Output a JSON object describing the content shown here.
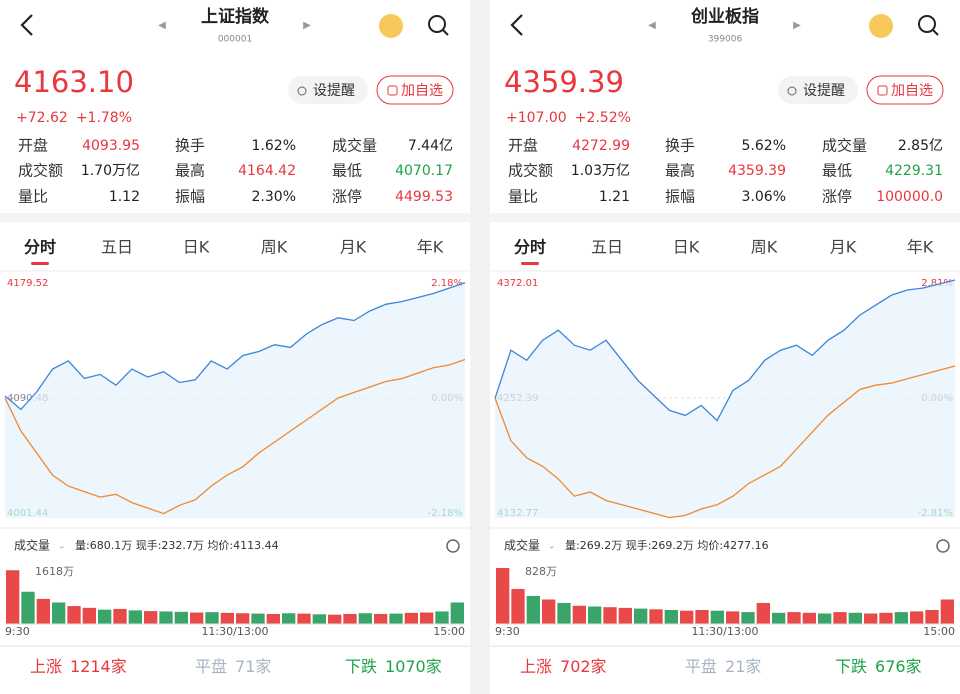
{
  "panels": [
    {
      "title": "上证指数",
      "code": "000001",
      "price": "4163.10",
      "change": "+72.62",
      "change_pct": "+1.78%",
      "buttons": [
        "设提醒",
        "加自选"
      ],
      "stats": [
        {
          "label": "开盘",
          "value": "4093.95",
          "color": "#e8373d"
        },
        {
          "label": "换手",
          "value": "1.62%",
          "color": "#222"
        },
        {
          "label": "成交量",
          "value": "7.44亿",
          "color": "#222"
        },
        {
          "label": "成交额",
          "value": "1.70万亿",
          "color": "#222"
        },
        {
          "label": "最高",
          "value": "4164.42",
          "color": "#e8373d"
        },
        {
          "label": "最低",
          "value": "4070.17",
          "color": "#1fa34a"
        },
        {
          "label": "量比",
          "value": "1.12",
          "color": "#222"
        },
        {
          "label": "振幅",
          "value": "2.30%",
          "color": "#222"
        },
        {
          "label": "涨停",
          "value": "4499.53",
          "color": "#e8373d"
        }
      ],
      "tabs": [
        "分时",
        "五日",
        "日K",
        "周K",
        "月K",
        "年K"
      ],
      "chart_data": {
        "type": "line",
        "ylim": [
          4001.44,
          4179.52
        ],
        "yticks": [
          4001.44,
          4090.48,
          4179.52
        ],
        "y2lim": [
          -2.18,
          2.18
        ],
        "y2ticks": [
          {
            "value": -2.18,
            "label": "-2.18%"
          },
          {
            "value": 0,
            "label": "0.00%"
          },
          {
            "value": 2.18,
            "label": "2.18%"
          }
        ],
        "series": [
          {
            "color": "#3a86d8",
            "values": [
              4092,
              4082,
              4095,
              4112,
              4118,
              4105,
              4108,
              4100,
              4112,
              4106,
              4110,
              4102,
              4104,
              4118,
              4112,
              4122,
              4125,
              4130,
              4128,
              4138,
              4145,
              4150,
              4148,
              4155,
              4160,
              4162,
              4165,
              4168,
              4172,
              4176
            ]
          },
          {
            "color": "#f08a2c",
            "axis": "y2",
            "values": [
              0,
              -0.6,
              -1.0,
              -1.4,
              -1.6,
              -1.7,
              -1.8,
              -1.75,
              -1.9,
              -2.0,
              -2.1,
              -1.95,
              -1.85,
              -1.6,
              -1.4,
              -1.25,
              -1.0,
              -0.8,
              -0.6,
              -0.4,
              -0.2,
              0,
              0.1,
              0.2,
              0.3,
              0.35,
              0.45,
              0.55,
              0.6,
              0.7
            ]
          }
        ]
      },
      "volume": {
        "label": "成交量",
        "info": "量:680.1万 现手:232.7万 均价:4113.44",
        "max_label": "1618万",
        "ylim": [
          0,
          1618
        ],
        "values": [
          1500,
          900,
          700,
          600,
          500,
          450,
          400,
          420,
          380,
          360,
          350,
          340,
          320,
          330,
          310,
          300,
          290,
          280,
          300,
          290,
          270,
          260,
          280,
          300,
          280,
          290,
          310,
          320,
          350,
          600
        ],
        "colors": [
          "#e84a4a",
          "#3aa56a",
          "#e84a4a",
          "#3aa56a",
          "#e84a4a",
          "#e84a4a",
          "#3aa56a",
          "#e84a4a",
          "#3aa56a",
          "#e84a4a",
          "#3aa56a",
          "#3aa56a",
          "#e84a4a",
          "#3aa56a",
          "#e84a4a",
          "#e84a4a",
          "#3aa56a",
          "#e84a4a",
          "#3aa56a",
          "#e84a4a",
          "#3aa56a",
          "#e84a4a",
          "#e84a4a",
          "#3aa56a",
          "#e84a4a",
          "#3aa56a",
          "#e84a4a",
          "#e84a4a",
          "#3aa56a",
          "#3aa56a"
        ]
      },
      "time_labels": [
        "9:30",
        "11:30/13:00",
        "15:00"
      ],
      "breadth": [
        {
          "label": "上涨",
          "value": "1214家",
          "color": "#e8373d"
        },
        {
          "label": "平盘",
          "value": "71家",
          "color": "#a9b4c4"
        },
        {
          "label": "下跌",
          "value": "1070家",
          "color": "#1fa34a"
        }
      ]
    },
    {
      "title": "创业板指",
      "code": "399006",
      "price": "4359.39",
      "change": "+107.00",
      "change_pct": "+2.52%",
      "buttons": [
        "设提醒",
        "加自选"
      ],
      "stats": [
        {
          "label": "开盘",
          "value": "4272.99",
          "color": "#e8373d"
        },
        {
          "label": "换手",
          "value": "5.62%",
          "color": "#222"
        },
        {
          "label": "成交量",
          "value": "2.85亿",
          "color": "#222"
        },
        {
          "label": "成交额",
          "value": "1.03万亿",
          "color": "#222"
        },
        {
          "label": "最高",
          "value": "4359.39",
          "color": "#e8373d"
        },
        {
          "label": "最低",
          "value": "4229.31",
          "color": "#1fa34a"
        },
        {
          "label": "量比",
          "value": "1.21",
          "color": "#222"
        },
        {
          "label": "振幅",
          "value": "3.06%",
          "color": "#222"
        },
        {
          "label": "涨停",
          "value": "100000.0",
          "color": "#e8373d"
        }
      ],
      "tabs": [
        "分时",
        "五日",
        "日K",
        "周K",
        "月K",
        "年K"
      ],
      "chart_data": {
        "type": "line",
        "ylim": [
          4132.77,
          4372.01
        ],
        "yticks": [
          4132.77,
          4252.39,
          4372.01
        ],
        "y2lim": [
          -2.81,
          2.81
        ],
        "y2ticks": [
          {
            "value": -2.81,
            "label": "-2.81%"
          },
          {
            "value": 0,
            "label": "0.00%"
          },
          {
            "value": 2.81,
            "label": "2.81%"
          }
        ],
        "series": [
          {
            "color": "#3a86d8",
            "values": [
              4252,
              4300,
              4290,
              4310,
              4320,
              4305,
              4300,
              4310,
              4290,
              4270,
              4255,
              4240,
              4235,
              4245,
              4230,
              4260,
              4270,
              4290,
              4300,
              4305,
              4295,
              4310,
              4320,
              4335,
              4345,
              4355,
              4360,
              4362,
              4366,
              4370
            ]
          },
          {
            "color": "#f08a2c",
            "axis": "y2",
            "values": [
              0,
              -1.0,
              -1.4,
              -1.6,
              -1.9,
              -2.3,
              -2.2,
              -2.4,
              -2.5,
              -2.6,
              -2.7,
              -2.8,
              -2.75,
              -2.6,
              -2.5,
              -2.3,
              -2.0,
              -1.8,
              -1.6,
              -1.2,
              -0.8,
              -0.4,
              -0.1,
              0.2,
              0.3,
              0.35,
              0.45,
              0.55,
              0.65,
              0.75
            ]
          }
        ]
      },
      "volume": {
        "label": "成交量",
        "info": "量:269.2万 现手:269.2万 均价:4277.16",
        "max_label": "828万",
        "ylim": [
          0,
          828
        ],
        "values": [
          800,
          500,
          400,
          350,
          300,
          260,
          250,
          240,
          230,
          220,
          210,
          200,
          190,
          200,
          190,
          180,
          170,
          300,
          160,
          170,
          160,
          150,
          170,
          160,
          150,
          160,
          170,
          180,
          200,
          350
        ],
        "colors": [
          "#e84a4a",
          "#e84a4a",
          "#3aa56a",
          "#e84a4a",
          "#3aa56a",
          "#e84a4a",
          "#3aa56a",
          "#e84a4a",
          "#e84a4a",
          "#3aa56a",
          "#e84a4a",
          "#3aa56a",
          "#e84a4a",
          "#e84a4a",
          "#3aa56a",
          "#e84a4a",
          "#3aa56a",
          "#e84a4a",
          "#3aa56a",
          "#e84a4a",
          "#e84a4a",
          "#3aa56a",
          "#e84a4a",
          "#3aa56a",
          "#e84a4a",
          "#e84a4a",
          "#3aa56a",
          "#e84a4a",
          "#e84a4a",
          "#e84a4a"
        ]
      },
      "time_labels": [
        "9:30",
        "11:30/13:00",
        "15:00"
      ],
      "breadth": [
        {
          "label": "上涨",
          "value": "702家",
          "color": "#e8373d"
        },
        {
          "label": "平盘",
          "value": "21家",
          "color": "#a9b4c4"
        },
        {
          "label": "下跌",
          "value": "676家",
          "color": "#1fa34a"
        }
      ]
    }
  ]
}
